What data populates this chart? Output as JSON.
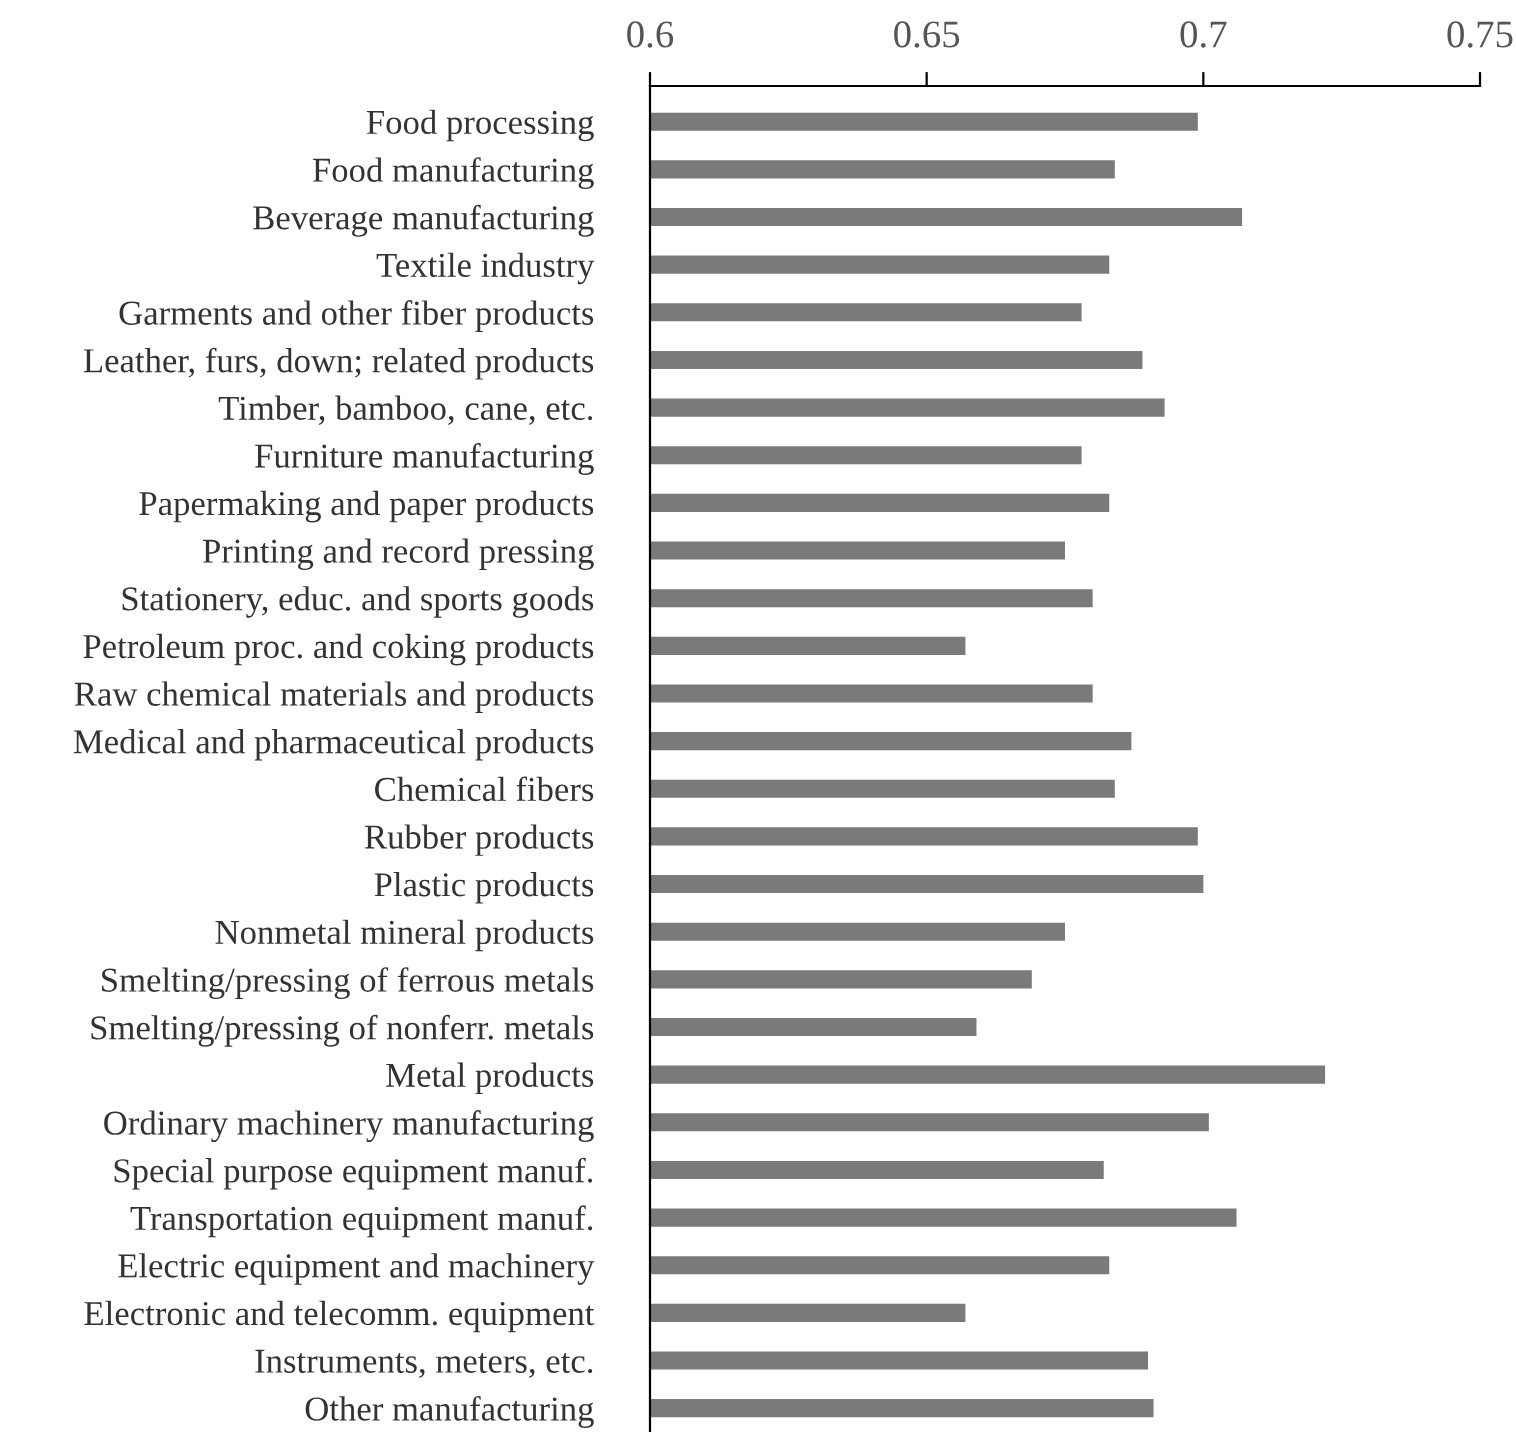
{
  "chart_data": {
    "type": "bar",
    "orientation": "horizontal",
    "categories": [
      "Food processing",
      "Food manufacturing",
      "Beverage manufacturing",
      "Textile industry",
      "Garments and other fiber products",
      "Leather, furs, down; related products",
      "Timber, bamboo, cane, etc.",
      "Furniture manufacturing",
      "Papermaking and paper products",
      "Printing and record pressing",
      "Stationery, educ. and sports goods",
      "Petroleum proc. and coking products",
      "Raw chemical materials and products",
      "Medical and pharmaceutical products",
      "Chemical fibers",
      "Rubber products",
      "Plastic products",
      "Nonmetal mineral products",
      "Smelting/pressing of ferrous metals",
      "Smelting/pressing of nonferr. metals",
      "Metal products",
      "Ordinary machinery manufacturing",
      "Special purpose equipment manuf.",
      "Transportation equipment manuf.",
      "Electric equipment and machinery",
      "Electronic and telecomm. equipment",
      "Instruments, meters, etc.",
      "Other manufacturing"
    ],
    "values": [
      0.699,
      0.684,
      0.707,
      0.683,
      0.678,
      0.689,
      0.693,
      0.678,
      0.683,
      0.675,
      0.68,
      0.657,
      0.68,
      0.687,
      0.684,
      0.699,
      0.7,
      0.675,
      0.669,
      0.659,
      0.722,
      0.701,
      0.682,
      0.706,
      0.683,
      0.657,
      0.69,
      0.691
    ],
    "color": "#7a7a7b",
    "xlim": [
      0.6,
      0.75
    ],
    "xticks": [
      {
        "value": 0.6,
        "label": "0.6"
      },
      {
        "value": 0.65,
        "label": "0.65"
      },
      {
        "value": 0.7,
        "label": "0.7"
      },
      {
        "value": 0.75,
        "label": "0.75"
      }
    ],
    "grid": false,
    "legend": false
  }
}
